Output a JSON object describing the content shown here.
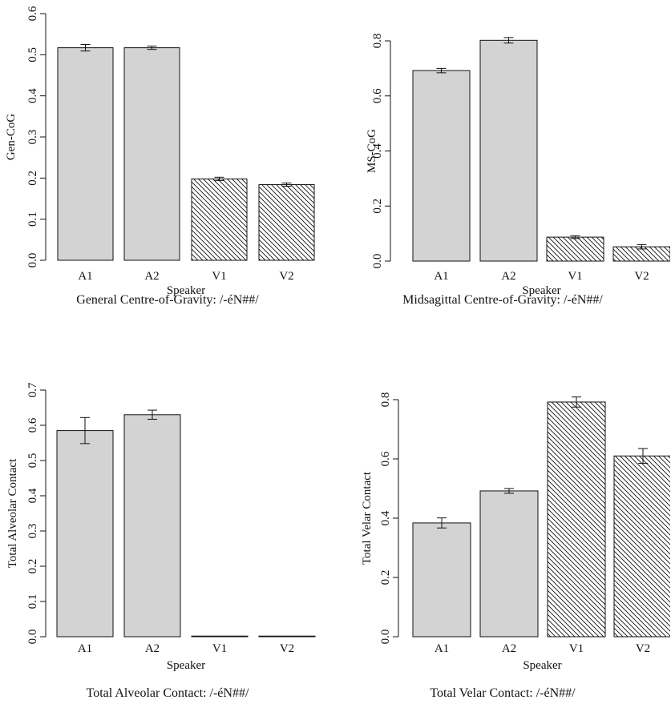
{
  "chart_data": [
    {
      "type": "bar",
      "title": "General Centre-of-Gravity: /-éN##/",
      "xlabel": "Speaker",
      "ylabel": "Gen-CoG",
      "categories": [
        "A1",
        "A2",
        "V1",
        "V2"
      ],
      "values": [
        0.517,
        0.517,
        0.198,
        0.184
      ],
      "error": [
        0.008,
        0.004,
        0.004,
        0.004
      ],
      "hatched": [
        false,
        false,
        true,
        true
      ],
      "ylim": [
        0,
        0.6
      ],
      "yticks": [
        "0.0",
        "0.1",
        "0.2",
        "0.3",
        "0.4",
        "0.5",
        "0.6"
      ],
      "grid": false
    },
    {
      "type": "bar",
      "title": "Midsagittal Centre-of-Gravity: /-éN##/",
      "xlabel": "Speaker",
      "ylabel": "MS-CoG",
      "categories": [
        "A1",
        "A2",
        "V1",
        "V2"
      ],
      "values": [
        0.692,
        0.802,
        0.087,
        0.052
      ],
      "error": [
        0.008,
        0.01,
        0.005,
        0.008
      ],
      "hatched": [
        false,
        false,
        true,
        true
      ],
      "ylim": [
        0,
        0.8
      ],
      "yticks": [
        "0.0",
        "0.2",
        "0.4",
        "0.6",
        "0.8"
      ],
      "grid": false
    },
    {
      "type": "bar",
      "title": "Total Alveolar Contact: /-éN##/",
      "xlabel": "Speaker",
      "ylabel": "Total Alveolar Contact",
      "categories": [
        "A1",
        "A2",
        "V1",
        "V2"
      ],
      "values": [
        0.585,
        0.63,
        0.0,
        0.0
      ],
      "error": [
        0.037,
        0.013,
        0.0,
        0.0
      ],
      "hatched": [
        false,
        false,
        true,
        true
      ],
      "ylim": [
        0,
        0.7
      ],
      "yticks": [
        "0.0",
        "0.1",
        "0.2",
        "0.3",
        "0.4",
        "0.5",
        "0.6",
        "0.7"
      ],
      "grid": false
    },
    {
      "type": "bar",
      "title": "Total Velar Contact: /-éN##/",
      "xlabel": "Speaker",
      "ylabel": "Total Velar Contact",
      "categories": [
        "A1",
        "A2",
        "V1",
        "V2"
      ],
      "values": [
        0.384,
        0.492,
        0.792,
        0.61
      ],
      "error": [
        0.017,
        0.008,
        0.017,
        0.025
      ],
      "hatched": [
        false,
        false,
        true,
        true
      ],
      "ylim": [
        0,
        0.8
      ],
      "yticks": [
        "0.0",
        "0.2",
        "0.4",
        "0.6",
        "0.8"
      ],
      "grid": false
    }
  ],
  "colors": {
    "bar_fill": "#d3d3d3",
    "stroke": "#111111",
    "hatch": "#111111",
    "background": "#ffffff"
  }
}
